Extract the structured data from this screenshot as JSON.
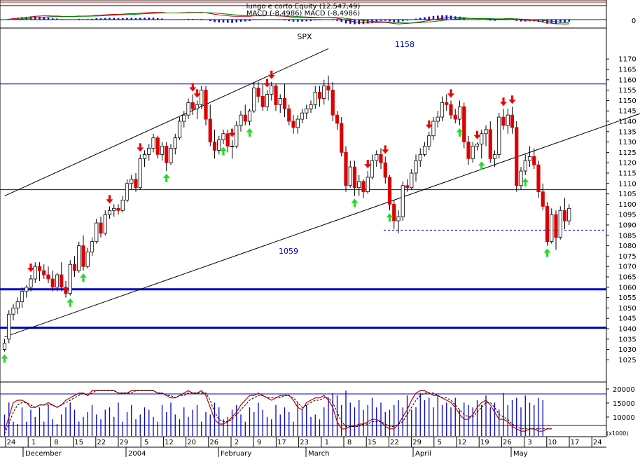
{
  "chart_data": {
    "type": "candlestick",
    "symbol": "SPX",
    "indicator_panel": {
      "line1": "lungo e corto Equity (12.547,49)",
      "line2": "MACD (-8,4986) MACD (-8,4986)",
      "zero_label": "0",
      "colors": {
        "macd": "#c00000",
        "signal": "#008000",
        "histogram": "#0000cc"
      }
    },
    "price_axis": {
      "min": 1025,
      "max": 1170,
      "step": 5,
      "ticks": [
        1025,
        1030,
        1035,
        1040,
        1045,
        1050,
        1055,
        1060,
        1065,
        1070,
        1075,
        1080,
        1085,
        1090,
        1095,
        1100,
        1105,
        1110,
        1115,
        1120,
        1125,
        1130,
        1135,
        1140,
        1145,
        1150,
        1155,
        1160,
        1165,
        1170
      ]
    },
    "x_axis": {
      "day_labels": [
        "24",
        "1",
        "8",
        "15",
        "22",
        "29",
        "5",
        "12",
        "20",
        "26",
        "2",
        "9",
        "17",
        "23",
        "1",
        "8",
        "15",
        "22",
        "29",
        "5",
        "12",
        "19",
        "26",
        "3",
        "10",
        "17",
        "24"
      ],
      "month_labels": [
        "December",
        "2004",
        "February",
        "March",
        "April",
        "May"
      ]
    },
    "annotations": {
      "top_level": "1158",
      "mid_level": "1059"
    },
    "horizontal_levels": [
      {
        "value": 1158,
        "style": "thin",
        "color": "#0000cc"
      },
      {
        "value": 1107,
        "style": "thin",
        "color": "#0000cc"
      },
      {
        "value": 1059,
        "style": "thick",
        "color": "#0000cc"
      },
      {
        "value": 1040.5,
        "style": "thick",
        "color": "#0000cc"
      },
      {
        "value": 1087.5,
        "style": "dashed",
        "color": "#0000cc"
      }
    ],
    "trend_lines": [
      {
        "from": [
          0,
          1104
        ],
        "to": [
          74,
          1175
        ]
      },
      {
        "from": [
          0,
          1036
        ],
        "to": [
          182,
          1171
        ]
      }
    ],
    "candles": [
      [
        1030,
        1035,
        1029,
        1033
      ],
      [
        1035,
        1049,
        1033,
        1047
      ],
      [
        1047,
        1052,
        1044,
        1050
      ],
      [
        1050,
        1055,
        1047,
        1053
      ],
      [
        1053,
        1060,
        1050,
        1058
      ],
      [
        1058,
        1061,
        1055,
        1060
      ],
      [
        1060,
        1066,
        1058,
        1064
      ],
      [
        1064,
        1072,
        1062,
        1070
      ],
      [
        1070,
        1072,
        1063,
        1068
      ],
      [
        1068,
        1071,
        1064,
        1066
      ],
      [
        1066,
        1070,
        1062,
        1064
      ],
      [
        1064,
        1068,
        1058,
        1060
      ],
      [
        1060,
        1067,
        1058,
        1066
      ],
      [
        1066,
        1072,
        1058,
        1060
      ],
      [
        1060,
        1063,
        1055,
        1057
      ],
      [
        1057,
        1073,
        1056,
        1071
      ],
      [
        1071,
        1075,
        1065,
        1068
      ],
      [
        1068,
        1082,
        1067,
        1080
      ],
      [
        1080,
        1085,
        1068,
        1070
      ],
      [
        1070,
        1079,
        1069,
        1077
      ],
      [
        1077,
        1084,
        1075,
        1082
      ],
      [
        1082,
        1093,
        1081,
        1091
      ],
      [
        1091,
        1094,
        1084,
        1086
      ],
      [
        1086,
        1097,
        1085,
        1095
      ],
      [
        1095,
        1099,
        1093,
        1097
      ],
      [
        1097,
        1100,
        1094,
        1098
      ],
      [
        1098,
        1100,
        1095,
        1097
      ],
      [
        1097,
        1104,
        1096,
        1102
      ],
      [
        1102,
        1112,
        1101,
        1110
      ],
      [
        1110,
        1114,
        1107,
        1112
      ],
      [
        1112,
        1115,
        1106,
        1108
      ],
      [
        1108,
        1124,
        1107,
        1122
      ],
      [
        1122,
        1126,
        1118,
        1124
      ],
      [
        1124,
        1129,
        1121,
        1127
      ],
      [
        1127,
        1134,
        1125,
        1132
      ],
      [
        1132,
        1133,
        1122,
        1124
      ],
      [
        1124,
        1130,
        1121,
        1128
      ],
      [
        1128,
        1130,
        1116,
        1120
      ],
      [
        1120,
        1129,
        1119,
        1127
      ],
      [
        1127,
        1134,
        1124,
        1132
      ],
      [
        1132,
        1142,
        1131,
        1140
      ],
      [
        1140,
        1145,
        1137,
        1143
      ],
      [
        1143,
        1151,
        1141,
        1149
      ],
      [
        1149,
        1153,
        1143,
        1146
      ],
      [
        1146,
        1150,
        1141,
        1148
      ],
      [
        1148,
        1157,
        1146,
        1155
      ],
      [
        1155,
        1157,
        1138,
        1141
      ],
      [
        1141,
        1148,
        1128,
        1130
      ],
      [
        1130,
        1136,
        1122,
        1126
      ],
      [
        1126,
        1133,
        1124,
        1131
      ],
      [
        1131,
        1136,
        1129,
        1134
      ],
      [
        1134,
        1136,
        1125,
        1128
      ],
      [
        1128,
        1131,
        1122,
        1128
      ],
      [
        1128,
        1140,
        1127,
        1138
      ],
      [
        1138,
        1145,
        1135,
        1143
      ],
      [
        1143,
        1148,
        1138,
        1140
      ],
      [
        1140,
        1146,
        1138,
        1145
      ],
      [
        1145,
        1159,
        1144,
        1156
      ],
      [
        1156,
        1159,
        1149,
        1152
      ],
      [
        1152,
        1158,
        1145,
        1147
      ],
      [
        1147,
        1155,
        1145,
        1153
      ],
      [
        1153,
        1159,
        1150,
        1157
      ],
      [
        1157,
        1158,
        1145,
        1148
      ],
      [
        1148,
        1153,
        1144,
        1151
      ],
      [
        1151,
        1158,
        1142,
        1146
      ],
      [
        1146,
        1148,
        1138,
        1140
      ],
      [
        1140,
        1143,
        1134,
        1137
      ],
      [
        1137,
        1143,
        1134,
        1141
      ],
      [
        1141,
        1146,
        1139,
        1144
      ],
      [
        1144,
        1148,
        1141,
        1146
      ],
      [
        1146,
        1150,
        1144,
        1148
      ],
      [
        1148,
        1157,
        1146,
        1154
      ],
      [
        1154,
        1157,
        1147,
        1151
      ],
      [
        1151,
        1160,
        1148,
        1157
      ],
      [
        1157,
        1162,
        1150,
        1155
      ],
      [
        1155,
        1159,
        1140,
        1143
      ],
      [
        1143,
        1145,
        1136,
        1139
      ],
      [
        1139,
        1142,
        1123,
        1125
      ],
      [
        1125,
        1128,
        1106,
        1109
      ],
      [
        1109,
        1121,
        1108,
        1118
      ],
      [
        1118,
        1121,
        1104,
        1108
      ],
      [
        1108,
        1114,
        1104,
        1111
      ],
      [
        1111,
        1112,
        1103,
        1106
      ],
      [
        1106,
        1116,
        1105,
        1113
      ],
      [
        1113,
        1124,
        1112,
        1121
      ],
      [
        1121,
        1126,
        1118,
        1124
      ],
      [
        1124,
        1127,
        1117,
        1120
      ],
      [
        1120,
        1123,
        1110,
        1113
      ],
      [
        1113,
        1114,
        1097,
        1100
      ],
      [
        1100,
        1102,
        1088,
        1092
      ],
      [
        1092,
        1097,
        1086,
        1094
      ],
      [
        1094,
        1111,
        1092,
        1109
      ],
      [
        1109,
        1112,
        1106,
        1108
      ],
      [
        1108,
        1117,
        1107,
        1115
      ],
      [
        1115,
        1124,
        1111,
        1121
      ],
      [
        1121,
        1127,
        1118,
        1124
      ],
      [
        1124,
        1130,
        1123,
        1128
      ],
      [
        1128,
        1135,
        1126,
        1133
      ],
      [
        1133,
        1142,
        1131,
        1140
      ],
      [
        1140,
        1145,
        1137,
        1142
      ],
      [
        1142,
        1152,
        1140,
        1149
      ],
      [
        1149,
        1153,
        1145,
        1148
      ],
      [
        1148,
        1150,
        1141,
        1143
      ],
      [
        1143,
        1146,
        1139,
        1141
      ],
      [
        1141,
        1150,
        1138,
        1147
      ],
      [
        1147,
        1149,
        1127,
        1130
      ],
      [
        1130,
        1133,
        1119,
        1122
      ],
      [
        1122,
        1130,
        1120,
        1128
      ],
      [
        1128,
        1130,
        1126,
        1129
      ],
      [
        1129,
        1136,
        1122,
        1134
      ],
      [
        1134,
        1138,
        1128,
        1136
      ],
      [
        1136,
        1140,
        1120,
        1122
      ],
      [
        1122,
        1126,
        1118,
        1124
      ],
      [
        1124,
        1144,
        1122,
        1142
      ],
      [
        1142,
        1146,
        1136,
        1138
      ],
      [
        1138,
        1146,
        1134,
        1143
      ],
      [
        1143,
        1147,
        1134,
        1137
      ],
      [
        1137,
        1140,
        1106,
        1109
      ],
      [
        1109,
        1118,
        1107,
        1116
      ],
      [
        1116,
        1124,
        1114,
        1121
      ],
      [
        1121,
        1128,
        1118,
        1123
      ],
      [
        1123,
        1127,
        1117,
        1119
      ],
      [
        1119,
        1121,
        1103,
        1106
      ],
      [
        1106,
        1110,
        1097,
        1099
      ],
      [
        1099,
        1101,
        1080,
        1082
      ],
      [
        1082,
        1098,
        1081,
        1095
      ],
      [
        1095,
        1097,
        1078,
        1084
      ],
      [
        1084,
        1099,
        1083,
        1097
      ],
      [
        1097,
        1103,
        1088,
        1092
      ],
      [
        1092,
        1100,
        1090,
        1098
      ]
    ],
    "sell_signals": [
      6,
      24,
      31,
      43,
      44,
      52,
      60,
      61,
      83,
      87,
      97,
      102,
      108,
      114,
      116
    ],
    "buy_signals": [
      0,
      15,
      18,
      37,
      50,
      56,
      80,
      88,
      104,
      109,
      119,
      124
    ],
    "oscillator_panel": {
      "axis_labels": [
        "20000",
        "15000",
        "10000"
      ],
      "corner_label": "(x1000)",
      "volume_bars": [
        9,
        14,
        6,
        5,
        12,
        6,
        11,
        8,
        12,
        6,
        13,
        7,
        5,
        9,
        12,
        14,
        11,
        6,
        8,
        10,
        13,
        9,
        7,
        11,
        12,
        8,
        14,
        6,
        10,
        13,
        7,
        9,
        12,
        11,
        8,
        6,
        13,
        10,
        14,
        9,
        7,
        12,
        8,
        11,
        13,
        6,
        10,
        9,
        14,
        12,
        7,
        8,
        11,
        13,
        9,
        6,
        12,
        10,
        14,
        11,
        8,
        7,
        13,
        9,
        12,
        10,
        6,
        14,
        11,
        13,
        8,
        9,
        7,
        12,
        16,
        18,
        17,
        13,
        19,
        14,
        12,
        15,
        11,
        13,
        16,
        12,
        14,
        10,
        11,
        13,
        15,
        12,
        17,
        11,
        12,
        18,
        15,
        16,
        12,
        17,
        13,
        14,
        12,
        16,
        11,
        14,
        13,
        12,
        15,
        13,
        17,
        12,
        14,
        11,
        18,
        13,
        15,
        16,
        12,
        17,
        14,
        13,
        16,
        15
      ],
      "k_line": [
        2,
        8,
        14,
        15,
        15,
        14,
        12,
        12,
        13,
        13,
        14,
        13,
        12,
        13,
        15,
        16,
        17,
        18,
        18,
        17,
        19,
        19,
        19,
        19,
        19,
        19,
        18,
        18,
        18,
        19,
        19,
        19,
        19,
        19,
        19,
        18,
        18,
        17,
        16,
        16,
        17,
        18,
        19,
        18,
        18,
        19,
        17,
        12,
        7,
        5,
        5,
        6,
        8,
        10,
        13,
        15,
        17,
        17,
        18,
        17,
        16,
        15,
        16,
        17,
        17,
        17,
        15,
        12,
        11,
        14,
        15,
        16,
        16,
        17,
        15,
        12,
        6,
        3,
        3,
        4,
        4,
        5,
        5,
        6,
        7,
        7,
        6,
        4,
        3,
        3,
        5,
        8,
        11,
        15,
        18,
        19,
        19,
        18,
        17,
        17,
        16,
        15,
        14,
        12,
        9,
        7,
        7,
        9,
        12,
        14,
        15,
        13,
        10,
        7,
        7,
        6,
        4,
        3,
        2,
        2,
        3,
        3,
        2,
        2,
        3,
        3
      ],
      "d_line": [
        1,
        5,
        10,
        13,
        14,
        14,
        13,
        12,
        13,
        13,
        13,
        13,
        12,
        13,
        14,
        15,
        16,
        17,
        18,
        17,
        18,
        19,
        19,
        19,
        19,
        19,
        18,
        18,
        18,
        18,
        19,
        19,
        19,
        19,
        19,
        18,
        18,
        17,
        17,
        16,
        17,
        17,
        18,
        18,
        18,
        18,
        18,
        15,
        10,
        7,
        6,
        6,
        7,
        9,
        11,
        13,
        15,
        16,
        17,
        17,
        16,
        16,
        16,
        16,
        17,
        17,
        16,
        14,
        12,
        13,
        14,
        15,
        15,
        16,
        16,
        14,
        10,
        6,
        4,
        4,
        4,
        4,
        5,
        5,
        6,
        6,
        6,
        5,
        4,
        4,
        5,
        6,
        9,
        12,
        15,
        17,
        18,
        18,
        18,
        17,
        16,
        16,
        15,
        13,
        11,
        9,
        8,
        8,
        10,
        12,
        14,
        14,
        12,
        9,
        8,
        7,
        5,
        4,
        3,
        3,
        3,
        3,
        3,
        3,
        3,
        3
      ]
    }
  }
}
